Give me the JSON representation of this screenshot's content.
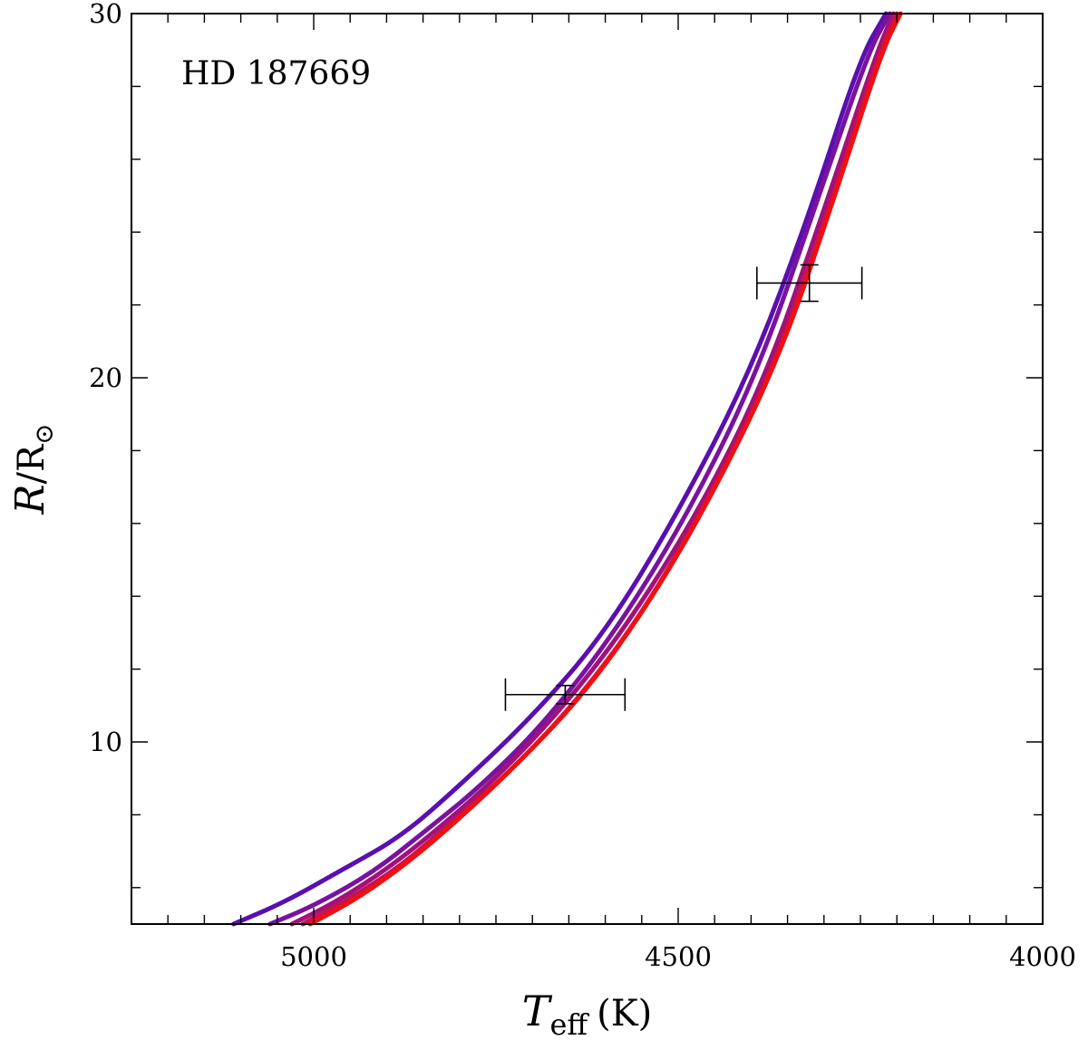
{
  "chart_data": {
    "type": "line",
    "annotation": "HD 187669",
    "xlabel": {
      "symbol": "T",
      "subscript": "eff",
      "unit": "(K)"
    },
    "ylabel": {
      "symbol": "R",
      "rest": "/R",
      "solar": "⊙"
    },
    "xlim": [
      5250,
      4000
    ],
    "ylim": [
      5,
      30
    ],
    "x_ticks": [
      5000,
      4500,
      4000
    ],
    "y_ticks": [
      10,
      20,
      30
    ],
    "x_minor_step": 50,
    "y_minor_step": 2,
    "colors": {
      "blue_end": "#5a0fb0",
      "red_end": "#f01010"
    },
    "series": [
      {
        "color": "#5a0fb0",
        "points": [
          [
            5110,
            5.0
          ],
          [
            5040,
            5.6
          ],
          [
            4960,
            6.5
          ],
          [
            4880,
            7.4
          ],
          [
            4800,
            8.8
          ],
          [
            4700,
            10.7
          ],
          [
            4600,
            13.0
          ],
          [
            4500,
            16.3
          ],
          [
            4400,
            20.2
          ],
          [
            4320,
            24.5
          ],
          [
            4250,
            28.8
          ],
          [
            4215,
            30.0
          ]
        ]
      },
      {
        "color": "#7a12a0",
        "points": [
          [
            5060,
            5.0
          ],
          [
            5000,
            5.5
          ],
          [
            4920,
            6.4
          ],
          [
            4850,
            7.5
          ],
          [
            4770,
            8.8
          ],
          [
            4680,
            10.6
          ],
          [
            4580,
            13.2
          ],
          [
            4480,
            16.5
          ],
          [
            4390,
            20.2
          ],
          [
            4310,
            24.8
          ],
          [
            4240,
            28.9
          ],
          [
            4210,
            30.0
          ]
        ]
      },
      {
        "color": "#a0127a",
        "points": [
          [
            5030,
            5.0
          ],
          [
            4970,
            5.6
          ],
          [
            4900,
            6.5
          ],
          [
            4830,
            7.6
          ],
          [
            4750,
            9.0
          ],
          [
            4660,
            10.9
          ],
          [
            4570,
            13.2
          ],
          [
            4470,
            16.4
          ],
          [
            4380,
            20.0
          ],
          [
            4300,
            24.6
          ],
          [
            4230,
            28.8
          ],
          [
            4205,
            30.0
          ]
        ]
      },
      {
        "color": "#c81150",
        "points": [
          [
            5015,
            5.0
          ],
          [
            4950,
            5.7
          ],
          [
            4880,
            6.6
          ],
          [
            4810,
            7.8
          ],
          [
            4730,
            9.2
          ],
          [
            4640,
            11.1
          ],
          [
            4550,
            13.5
          ],
          [
            4460,
            16.6
          ],
          [
            4370,
            20.2
          ],
          [
            4290,
            24.8
          ],
          [
            4225,
            28.9
          ],
          [
            4200,
            30.0
          ]
        ]
      },
      {
        "color": "#f01010",
        "points": [
          [
            5005,
            5.0
          ],
          [
            4940,
            5.7
          ],
          [
            4870,
            6.7
          ],
          [
            4800,
            7.9
          ],
          [
            4720,
            9.4
          ],
          [
            4630,
            11.3
          ],
          [
            4540,
            13.8
          ],
          [
            4450,
            16.9
          ],
          [
            4360,
            20.6
          ],
          [
            4285,
            25.0
          ],
          [
            4220,
            29.0
          ],
          [
            4195,
            30.0
          ]
        ]
      }
    ],
    "error_bars": [
      {
        "x": 4655,
        "y": 11.3,
        "x_err": [
          82,
          82
        ],
        "y_err": [
          0.25,
          0.25
        ]
      },
      {
        "x": 4320,
        "y": 22.6,
        "x_err": [
          72,
          72
        ],
        "y_err": [
          0.5,
          0.5
        ]
      }
    ]
  }
}
